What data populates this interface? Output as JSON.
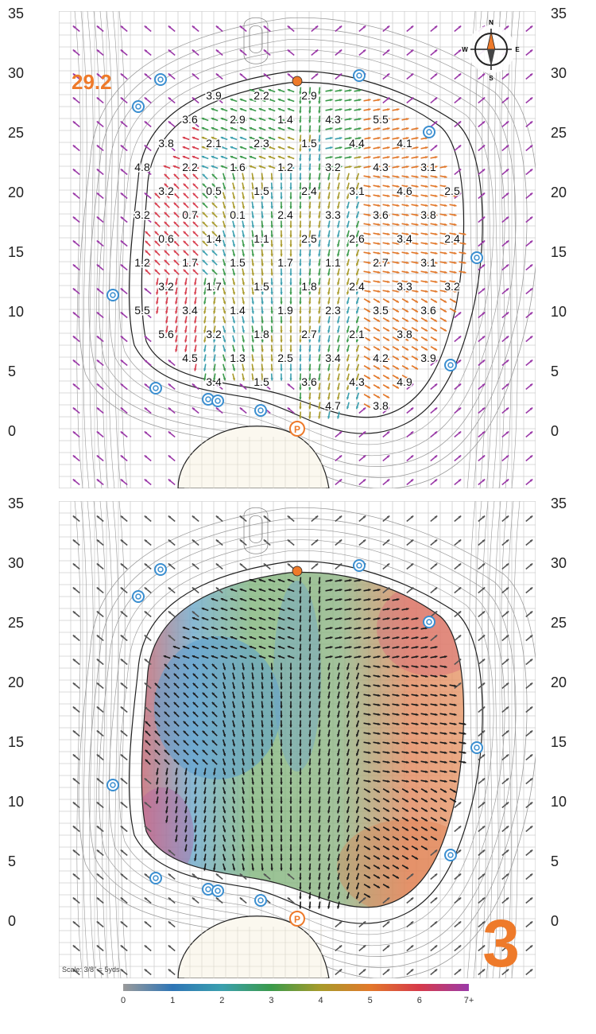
{
  "hole_number": "3",
  "green_depth": "29.2",
  "scale_note": "Scale: 3/8\" = 5yds",
  "compass": {
    "n": "N",
    "e": "E",
    "s": "S",
    "w": "W"
  },
  "y_axis_ticks": [
    "35",
    "30",
    "25",
    "20",
    "15",
    "10",
    "5",
    "0"
  ],
  "colorbar_ticks": [
    "0",
    "1",
    "2",
    "3",
    "4",
    "5",
    "6",
    "7+"
  ],
  "colorbar_colors": [
    "#9a9a9a",
    "#2e75b6",
    "#3a9fae",
    "#3a9a4a",
    "#a89a2a",
    "#e2782a",
    "#d63a4a",
    "#9b3aa8"
  ],
  "accent_color": "#ee7a2a",
  "pin_symbol": "P",
  "slope_labels": [
    [
      "3.9",
      "2.2",
      "2.9"
    ],
    [
      "3.6",
      "2.9",
      "1.4",
      "4.3",
      "5.5"
    ],
    [
      "3.8",
      "2.1",
      "2.3",
      "1.5",
      "4.4",
      "4.1"
    ],
    [
      "4.8",
      "2.2",
      "1.6",
      "1.2",
      "3.2",
      "4.3",
      "3.1"
    ],
    [
      "3.2",
      "0.5",
      "1.5",
      "2.4",
      "3.1",
      "4.6",
      "2.5"
    ],
    [
      "3.2",
      "0.7",
      "0.1",
      "2.4",
      "3.3",
      "3.6",
      "3.8"
    ],
    [
      "0.6",
      "1.4",
      "1.1",
      "2.5",
      "2.6",
      "3.4",
      "2.4"
    ],
    [
      "1.2",
      "1.7",
      "1.5",
      "1.7",
      "1.1",
      "2.7",
      "3.1"
    ],
    [
      "3.2",
      "1.7",
      "1.5",
      "1.8",
      "2.4",
      "3.3",
      "3.2"
    ],
    [
      "5.5",
      "3.4",
      "1.4",
      "1.9",
      "2.3",
      "3.5",
      "3.6"
    ],
    [
      "5.6",
      "3.2",
      "1.8",
      "2.7",
      "2.1",
      "3.8"
    ],
    [
      "4.5",
      "1.3",
      "2.5",
      "3.4",
      "4.2",
      "3.9"
    ],
    [
      "3.4",
      "1.5",
      "3.6",
      "4.3",
      "4.9"
    ],
    [
      "4.7",
      "3.8"
    ]
  ]
}
